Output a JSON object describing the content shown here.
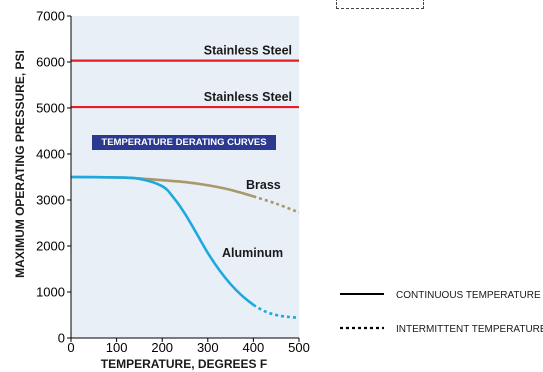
{
  "chart_data": {
    "type": "line",
    "xlabel": "TEMPERATURE, DEGREES F",
    "ylabel": "MAXIMUM OPERATING PRESSURE, PSI",
    "xlim": [
      0,
      500
    ],
    "ylim": [
      0,
      7000
    ],
    "x_ticks": [
      "0",
      "100",
      "200",
      "300",
      "400",
      "500"
    ],
    "y_ticks": [
      "0",
      "1000",
      "2000",
      "3000",
      "4000",
      "5000",
      "6000",
      "7000"
    ],
    "grid": false,
    "annotation": "TEMPERATURE DERATING CURVES",
    "legend": {
      "placement": "bottom-right",
      "items": [
        {
          "label": "CONTINUOUS TEMPERATURE",
          "style": "solid"
        },
        {
          "label": "INTERMITTENT TEMPERATURE",
          "style": "dotted"
        }
      ]
    },
    "series": [
      {
        "name": "Stainless Steel",
        "color": "#e31e24",
        "continuous": [
          [
            0,
            6030
          ],
          [
            500,
            6030
          ]
        ]
      },
      {
        "name": "Stainless Steel",
        "color": "#e31e24",
        "continuous": [
          [
            0,
            5020
          ],
          [
            500,
            5020
          ]
        ]
      },
      {
        "name": "Brass",
        "color": "#a89968",
        "continuous": [
          [
            0,
            3500
          ],
          [
            100,
            3490
          ],
          [
            150,
            3470
          ],
          [
            200,
            3430
          ],
          [
            250,
            3390
          ],
          [
            300,
            3320
          ],
          [
            350,
            3220
          ],
          [
            400,
            3080
          ]
        ],
        "intermittent": [
          [
            400,
            3080
          ],
          [
            450,
            2920
          ],
          [
            500,
            2730
          ]
        ]
      },
      {
        "name": "Aluminum",
        "color": "#1fa8e0",
        "continuous": [
          [
            0,
            3500
          ],
          [
            100,
            3490
          ],
          [
            150,
            3460
          ],
          [
            200,
            3300
          ],
          [
            225,
            3050
          ],
          [
            250,
            2700
          ],
          [
            275,
            2280
          ],
          [
            300,
            1850
          ],
          [
            325,
            1480
          ],
          [
            350,
            1170
          ],
          [
            375,
            920
          ],
          [
            400,
            720
          ]
        ],
        "intermittent": [
          [
            400,
            720
          ],
          [
            425,
            580
          ],
          [
            450,
            500
          ],
          [
            475,
            460
          ],
          [
            500,
            440
          ]
        ]
      }
    ]
  }
}
